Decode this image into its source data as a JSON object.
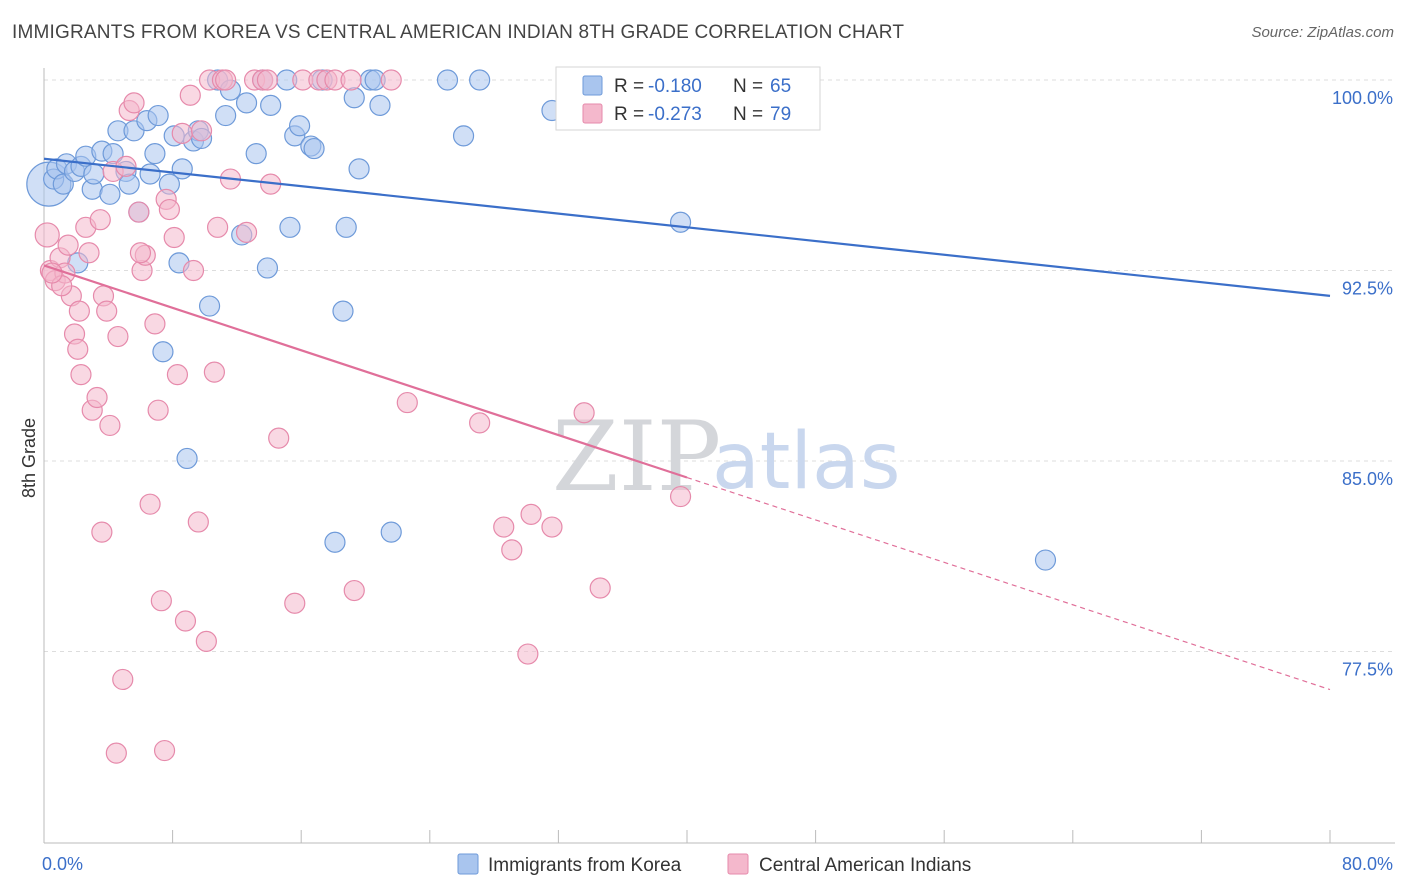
{
  "title": "IMMIGRANTS FROM KOREA VS CENTRAL AMERICAN INDIAN 8TH GRADE CORRELATION CHART",
  "source": "Source: ZipAtlas.com",
  "watermark": {
    "zip": "ZIP",
    "atlas": "atlas"
  },
  "colors": {
    "blue": "#3b6fc9",
    "blue_fill": "#a9c5ee",
    "pink": "#e06f99",
    "pink_fill": "#f4b8cc",
    "grid": "#dddddd"
  },
  "legend": {
    "rows": [
      {
        "r_label": "R =",
        "r_value": "-0.180",
        "n_label": "N =",
        "n_value": "65",
        "color": "blue"
      },
      {
        "r_label": "R =",
        "r_value": "-0.273",
        "n_label": "N =",
        "n_value": "79",
        "color": "pink"
      }
    ]
  },
  "bottom_legend": [
    "Immigrants from Korea",
    "Central American Indians"
  ],
  "chart_data": {
    "type": "scatter",
    "title": "IMMIGRANTS FROM KOREA VS CENTRAL AMERICAN INDIAN 8TH GRADE CORRELATION CHART",
    "xlabel": "",
    "ylabel": "8th Grade",
    "xlim": [
      0,
      80
    ],
    "ylim": [
      71,
      101.2
    ],
    "x_tick_labels": [
      "0.0%",
      "80.0%"
    ],
    "y_ticks": [
      77.5,
      85.0,
      92.5,
      100.0
    ],
    "y_tick_labels": [
      "77.5%",
      "85.0%",
      "92.5%",
      "100.0%"
    ],
    "grid": true,
    "legend_position": "top-center",
    "series": [
      {
        "name": "Immigrants from Korea",
        "color": "blue",
        "trend": {
          "x": [
            0,
            80
          ],
          "y": [
            96.9,
            91.5
          ],
          "dashed_from": null
        },
        "points": [
          [
            0.3,
            95.9,
            22
          ],
          [
            0.6,
            96.1,
            10
          ],
          [
            0.8,
            96.5,
            10
          ],
          [
            1.2,
            95.9,
            10
          ],
          [
            1.4,
            96.7,
            10
          ],
          [
            1.9,
            96.4,
            10
          ],
          [
            2.1,
            92.8,
            10
          ],
          [
            2.3,
            96.6,
            10
          ],
          [
            2.6,
            97.0,
            10
          ],
          [
            3.0,
            95.7,
            10
          ],
          [
            3.1,
            96.3,
            10
          ],
          [
            3.6,
            97.2,
            10
          ],
          [
            4.1,
            95.5,
            10
          ],
          [
            4.3,
            97.1,
            10
          ],
          [
            4.6,
            98.0,
            10
          ],
          [
            5.1,
            96.4,
            10
          ],
          [
            5.3,
            95.9,
            10
          ],
          [
            5.6,
            98.0,
            10
          ],
          [
            5.9,
            94.8,
            10
          ],
          [
            6.4,
            98.4,
            10
          ],
          [
            6.6,
            96.3,
            10
          ],
          [
            6.9,
            97.1,
            10
          ],
          [
            7.1,
            98.6,
            10
          ],
          [
            7.4,
            89.3,
            10
          ],
          [
            7.8,
            95.9,
            10
          ],
          [
            8.1,
            97.8,
            10
          ],
          [
            8.4,
            92.8,
            10
          ],
          [
            8.6,
            96.5,
            10
          ],
          [
            8.9,
            85.1,
            10
          ],
          [
            9.3,
            97.6,
            10
          ],
          [
            9.6,
            98.0,
            10
          ],
          [
            9.8,
            97.7,
            10
          ],
          [
            10.3,
            91.1,
            10
          ],
          [
            10.8,
            100.0,
            10
          ],
          [
            11.3,
            98.6,
            10
          ],
          [
            11.6,
            99.6,
            10
          ],
          [
            12.3,
            93.9,
            10
          ],
          [
            12.6,
            99.1,
            10
          ],
          [
            13.2,
            97.1,
            10
          ],
          [
            13.6,
            100.0,
            10
          ],
          [
            13.9,
            92.6,
            10
          ],
          [
            14.1,
            99.0,
            10
          ],
          [
            15.1,
            100.0,
            10
          ],
          [
            15.3,
            94.2,
            10
          ],
          [
            15.6,
            97.8,
            10
          ],
          [
            15.9,
            98.2,
            10
          ],
          [
            16.6,
            97.4,
            10
          ],
          [
            16.8,
            97.3,
            10
          ],
          [
            17.3,
            100.0,
            10
          ],
          [
            18.1,
            81.8,
            10
          ],
          [
            18.6,
            90.9,
            10
          ],
          [
            18.8,
            94.2,
            10
          ],
          [
            19.3,
            99.3,
            10
          ],
          [
            19.6,
            96.5,
            10
          ],
          [
            20.3,
            100.0,
            10
          ],
          [
            20.6,
            100.0,
            10
          ],
          [
            20.9,
            99.0,
            10
          ],
          [
            21.6,
            82.2,
            10
          ],
          [
            25.1,
            100.0,
            10
          ],
          [
            26.1,
            97.8,
            10
          ],
          [
            27.1,
            100.0,
            10
          ],
          [
            31.6,
            98.8,
            10
          ],
          [
            34.1,
            100.0,
            10
          ],
          [
            39.6,
            94.4,
            10
          ],
          [
            62.3,
            81.1,
            10
          ]
        ]
      },
      {
        "name": "Central American Indians",
        "color": "pink",
        "trend": {
          "x": [
            0,
            80
          ],
          "y": [
            92.7,
            76.0
          ],
          "dashed_from": 40
        },
        "points": [
          [
            0.2,
            93.9,
            12
          ],
          [
            0.4,
            92.5,
            10
          ],
          [
            0.7,
            92.1,
            10
          ],
          [
            1.0,
            93.0,
            10
          ],
          [
            1.3,
            92.4,
            10
          ],
          [
            1.5,
            93.5,
            10
          ],
          [
            1.7,
            91.5,
            10
          ],
          [
            1.9,
            90.0,
            10
          ],
          [
            2.1,
            89.4,
            10
          ],
          [
            2.3,
            88.4,
            10
          ],
          [
            2.6,
            94.2,
            10
          ],
          [
            2.8,
            93.2,
            10
          ],
          [
            3.0,
            87.0,
            10
          ],
          [
            3.3,
            87.5,
            10
          ],
          [
            3.5,
            94.5,
            10
          ],
          [
            3.7,
            91.5,
            10
          ],
          [
            3.9,
            90.9,
            10
          ],
          [
            4.1,
            86.4,
            10
          ],
          [
            4.3,
            96.4,
            10
          ],
          [
            4.6,
            89.9,
            10
          ],
          [
            4.9,
            76.4,
            10
          ],
          [
            5.1,
            96.6,
            10
          ],
          [
            5.3,
            98.8,
            10
          ],
          [
            5.6,
            99.1,
            10
          ],
          [
            5.9,
            94.8,
            10
          ],
          [
            6.1,
            92.5,
            10
          ],
          [
            6.3,
            93.1,
            10
          ],
          [
            6.6,
            83.3,
            10
          ],
          [
            6.9,
            90.4,
            10
          ],
          [
            7.1,
            87.0,
            10
          ],
          [
            7.3,
            79.5,
            10
          ],
          [
            7.6,
            95.3,
            10
          ],
          [
            7.8,
            94.9,
            10
          ],
          [
            8.1,
            93.8,
            10
          ],
          [
            8.3,
            88.4,
            10
          ],
          [
            8.6,
            97.9,
            10
          ],
          [
            8.8,
            78.7,
            10
          ],
          [
            9.1,
            99.4,
            10
          ],
          [
            9.3,
            92.5,
            10
          ],
          [
            9.6,
            82.6,
            10
          ],
          [
            9.8,
            98.0,
            10
          ],
          [
            10.1,
            77.9,
            10
          ],
          [
            10.3,
            100.0,
            10
          ],
          [
            10.6,
            88.5,
            10
          ],
          [
            10.8,
            94.2,
            10
          ],
          [
            11.1,
            100.0,
            10
          ],
          [
            11.3,
            100.0,
            10
          ],
          [
            11.6,
            96.1,
            10
          ],
          [
            12.6,
            94.0,
            10
          ],
          [
            13.1,
            100.0,
            10
          ],
          [
            13.6,
            100.0,
            10
          ],
          [
            13.9,
            100.0,
            10
          ],
          [
            14.1,
            95.9,
            10
          ],
          [
            14.6,
            85.9,
            10
          ],
          [
            15.6,
            79.4,
            10
          ],
          [
            16.1,
            100.0,
            10
          ],
          [
            17.1,
            100.0,
            10
          ],
          [
            17.6,
            100.0,
            10
          ],
          [
            18.1,
            100.0,
            10
          ],
          [
            19.1,
            100.0,
            10
          ],
          [
            19.3,
            79.9,
            10
          ],
          [
            21.6,
            100.0,
            10
          ],
          [
            22.6,
            87.3,
            10
          ],
          [
            27.1,
            86.5,
            10
          ],
          [
            28.6,
            82.4,
            10
          ],
          [
            29.1,
            81.5,
            10
          ],
          [
            30.1,
            77.4,
            10
          ],
          [
            30.3,
            82.9,
            10
          ],
          [
            31.6,
            82.4,
            10
          ],
          [
            33.6,
            86.9,
            10
          ],
          [
            34.6,
            80.0,
            10
          ],
          [
            39.6,
            83.6,
            10
          ],
          [
            4.5,
            73.5,
            10
          ],
          [
            7.5,
            73.6,
            10
          ],
          [
            3.6,
            82.2,
            10
          ],
          [
            2.2,
            90.9,
            10
          ],
          [
            1.1,
            91.9,
            10
          ],
          [
            0.5,
            92.4,
            10
          ],
          [
            6.0,
            93.2,
            10
          ]
        ]
      }
    ]
  }
}
